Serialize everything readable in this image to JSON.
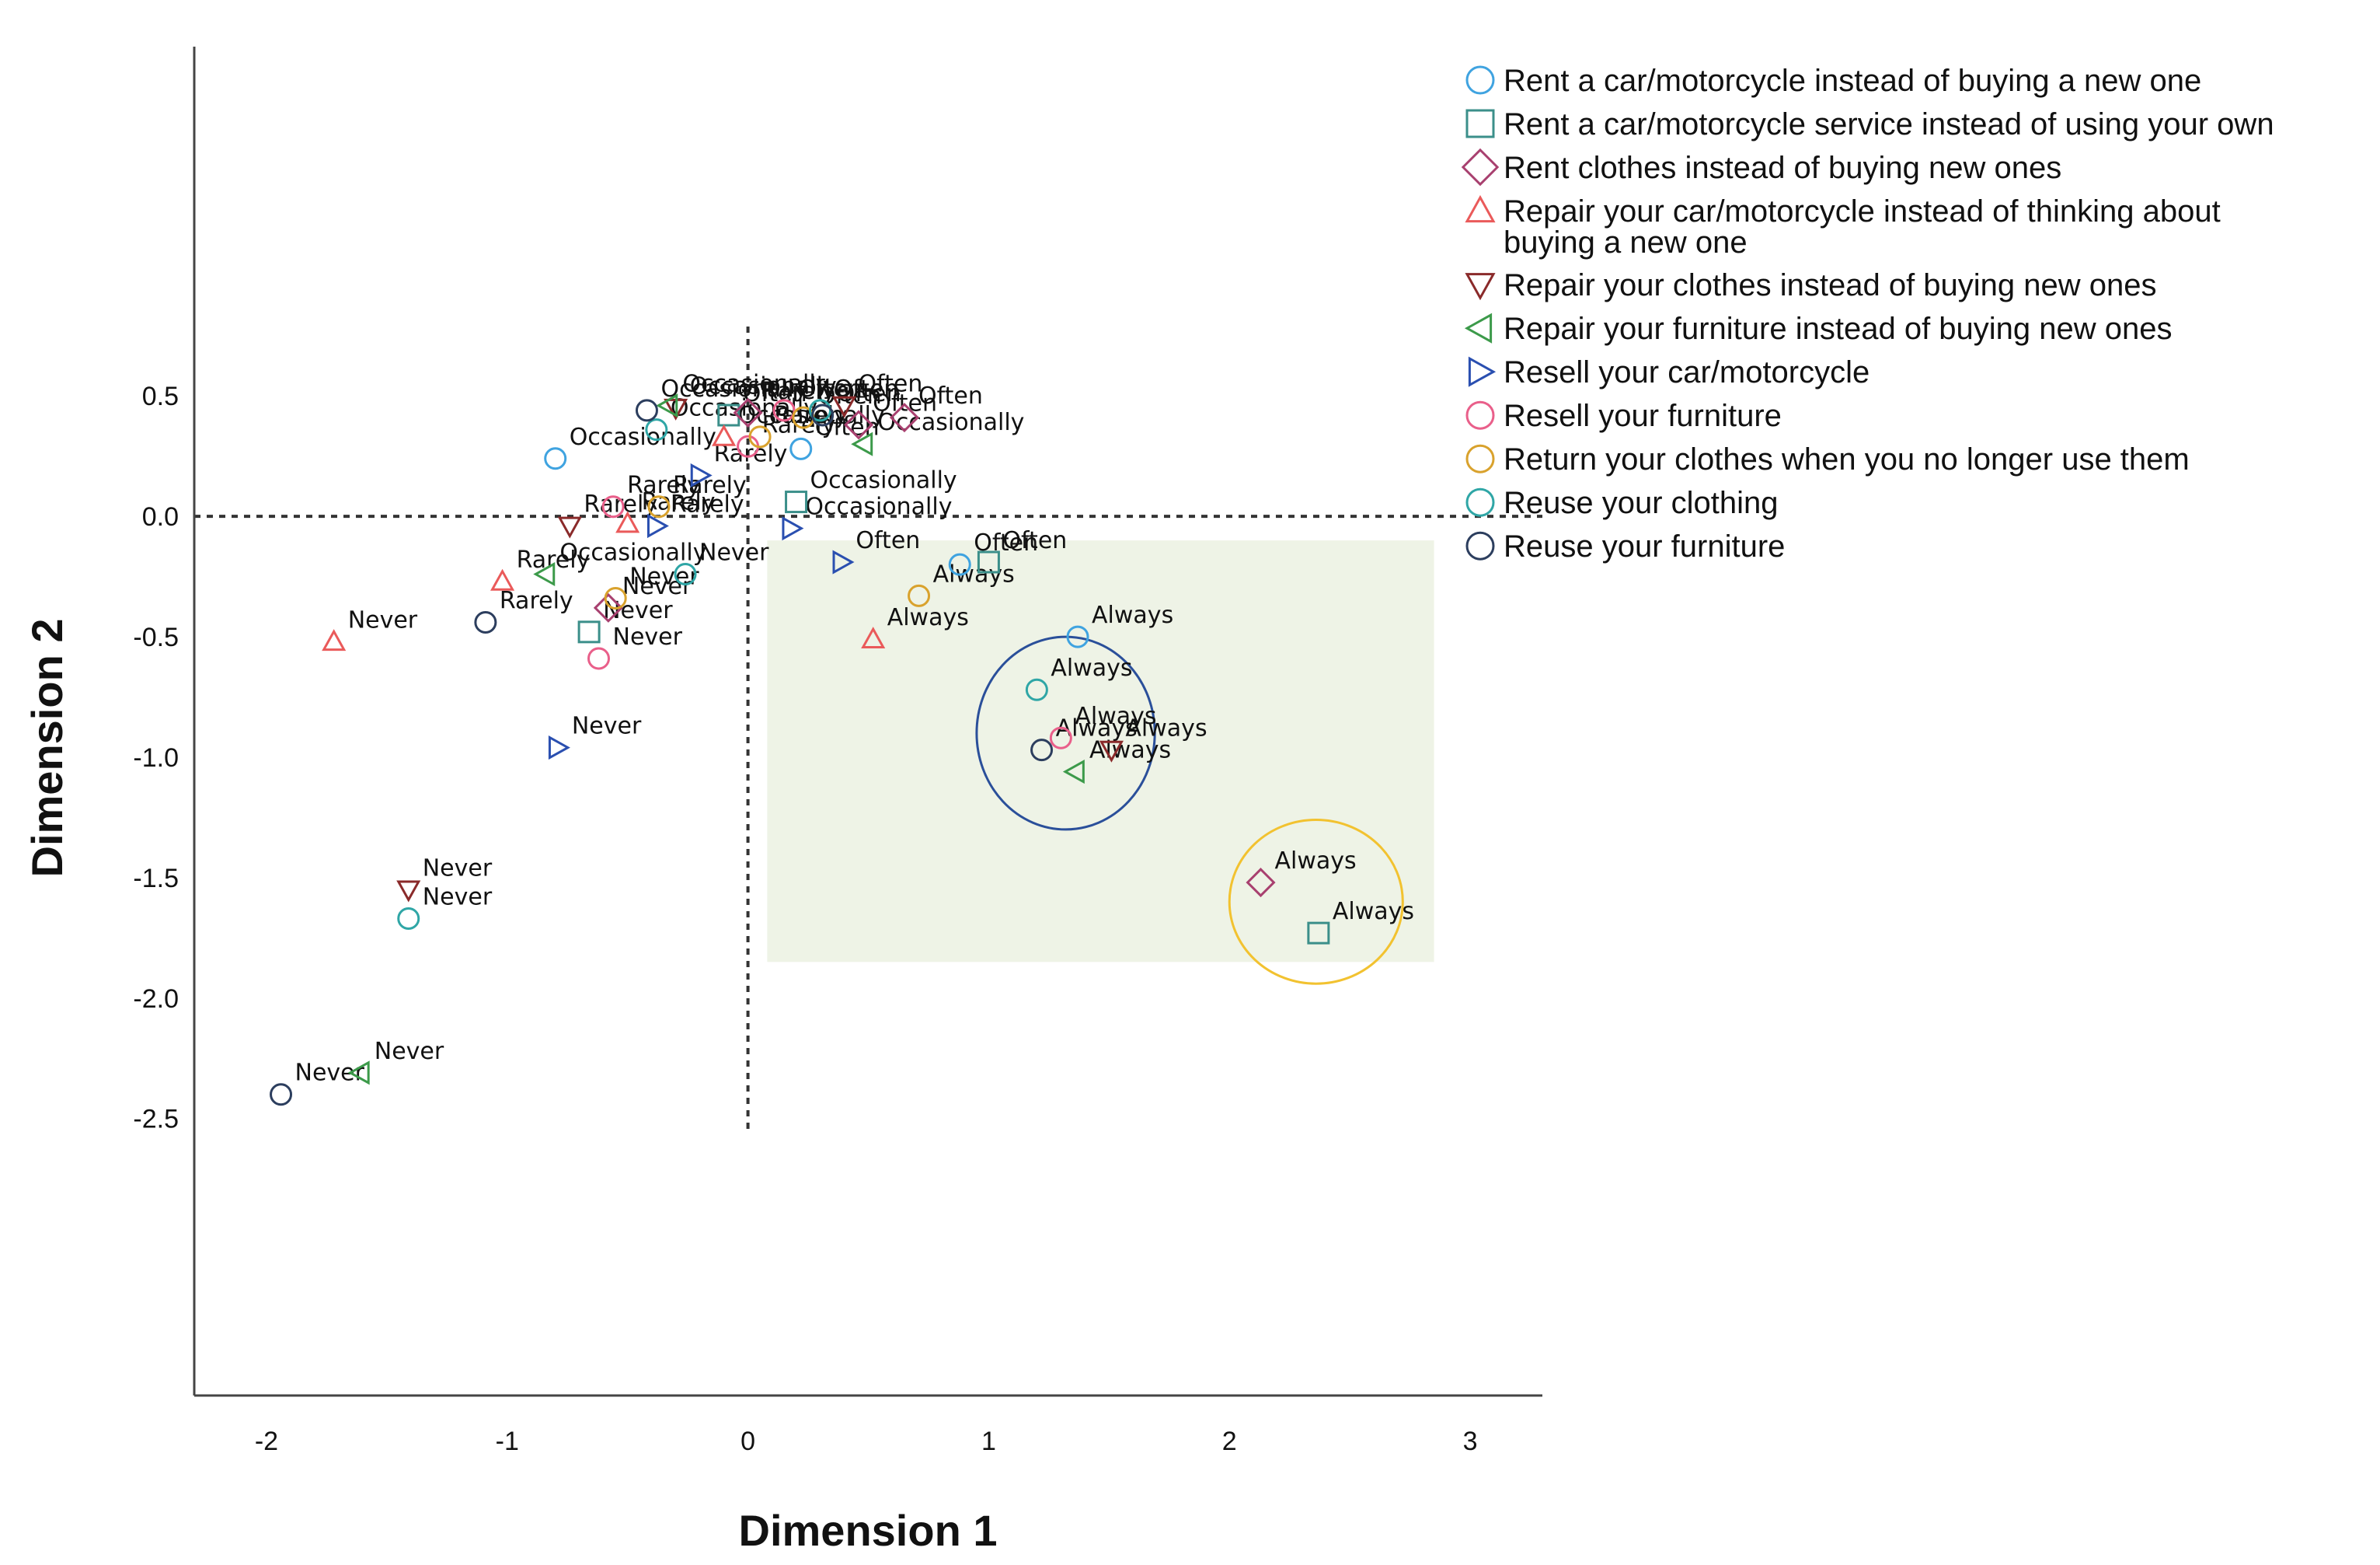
{
  "chart_data": {
    "type": "scatter",
    "title": "",
    "xlabel": "Dimension 1",
    "ylabel": "Dimension 2",
    "xlim": [
      -2.3,
      3.3
    ],
    "ylim": [
      -3.65,
      1.95
    ],
    "xticks": [
      "-2",
      "-1",
      "0",
      "1",
      "2",
      "3"
    ],
    "xtick_values": [
      -2,
      -1,
      0,
      1,
      2,
      3
    ],
    "yticks": [
      "0.5",
      "0.0",
      "-0.5",
      "-1.0",
      "-1.5",
      "-2.0",
      "-2.5"
    ],
    "ytick_values": [
      0.5,
      0,
      -0.5,
      -1,
      -1.5,
      -2,
      -2.5
    ],
    "reference_lines": {
      "x": 0,
      "y": 0
    },
    "legend_position": "right",
    "highlight_regions": [
      {
        "kind": "rect",
        "x_range": [
          0.08,
          2.85
        ],
        "y_range": [
          -1.85,
          -0.1
        ],
        "fill": "#eef3e6"
      },
      {
        "kind": "ellipse",
        "cx": 1.32,
        "cy": -0.9,
        "rx": 0.37,
        "ry": 0.4,
        "stroke": "#2a4f9a"
      },
      {
        "kind": "ellipse",
        "cx": 2.36,
        "cy": -1.6,
        "rx": 0.36,
        "ry": 0.34,
        "stroke": "#f2c230"
      }
    ],
    "series": [
      {
        "name": "Rent a car/motorcycle instead of buying a new one",
        "marker": "circle",
        "color": "#3fa3e0",
        "points": [
          {
            "label": "Occasionally",
            "x": -0.8,
            "y": 0.24
          },
          {
            "label": "Often",
            "x": 0.22,
            "y": 0.28
          },
          {
            "label": "Often",
            "x": 0.88,
            "y": -0.2
          },
          {
            "label": "Always",
            "x": 1.37,
            "y": -0.5
          }
        ]
      },
      {
        "name": "Rent a car/motorcycle service instead of using your own",
        "marker": "square",
        "color": "#3b8f8a",
        "points": [
          {
            "label": "Never",
            "x": -0.66,
            "y": -0.48
          },
          {
            "label": "Often",
            "x": -0.08,
            "y": 0.42
          },
          {
            "label": "Occasionally",
            "x": 0.2,
            "y": 0.06
          },
          {
            "label": "Often",
            "x": 1.0,
            "y": -0.19
          },
          {
            "label": "Always",
            "x": 2.37,
            "y": -1.73
          }
        ]
      },
      {
        "name": "Rent clothes instead of buying new ones",
        "marker": "diamond",
        "color": "#a8406f",
        "points": [
          {
            "label": "Never",
            "x": -0.58,
            "y": -0.38
          },
          {
            "label": "Rarely",
            "x": 0.0,
            "y": 0.43
          },
          {
            "label": "Often",
            "x": 0.46,
            "y": 0.38
          },
          {
            "label": "Often",
            "x": 0.65,
            "y": 0.41
          },
          {
            "label": "Always",
            "x": 2.13,
            "y": -1.52
          }
        ]
      },
      {
        "name": "Repair your car/motorcycle instead of thinking about buying a new one",
        "marker": "triangle-up",
        "color": "#ea5a5a",
        "points": [
          {
            "label": "Never",
            "x": -1.72,
            "y": -0.52
          },
          {
            "label": "Rarely",
            "x": -1.02,
            "y": -0.27
          },
          {
            "label": "Rarely",
            "x": -0.5,
            "y": -0.03
          },
          {
            "label": "Occasionally",
            "x": -0.1,
            "y": 0.33
          },
          {
            "label": "Always",
            "x": 0.52,
            "y": -0.51
          }
        ]
      },
      {
        "name": "Repair your clothes instead of buying new ones",
        "marker": "triangle-down",
        "color": "#8a2a2a",
        "points": [
          {
            "label": "Never",
            "x": -1.41,
            "y": -1.55
          },
          {
            "label": "Rarely",
            "x": -0.74,
            "y": -0.04
          },
          {
            "label": "Occasionally",
            "x": -0.3,
            "y": 0.45
          },
          {
            "label": "Often",
            "x": 0.4,
            "y": 0.46
          },
          {
            "label": "Always",
            "x": 1.51,
            "y": -0.97
          }
        ]
      },
      {
        "name": "Repair your furniture instead of buying new ones",
        "marker": "triangle-left",
        "color": "#3c9a4a",
        "points": [
          {
            "label": "Never",
            "x": -1.61,
            "y": -2.31
          },
          {
            "label": "Occasionally",
            "x": -0.84,
            "y": -0.24
          },
          {
            "label": "Occasionally",
            "x": -0.33,
            "y": 0.46
          },
          {
            "label": "Occasionally",
            "x": 0.48,
            "y": 0.3
          },
          {
            "label": "Always",
            "x": 1.36,
            "y": -1.06
          }
        ]
      },
      {
        "name": "Resell your car/motorcycle",
        "marker": "triangle-right",
        "color": "#2a4fb0",
        "points": [
          {
            "label": "Never",
            "x": -0.79,
            "y": -0.96
          },
          {
            "label": "Rarely",
            "x": -0.38,
            "y": -0.04
          },
          {
            "label": "Rarely",
            "x": -0.2,
            "y": 0.17
          },
          {
            "label": "Occasionally",
            "x": 0.18,
            "y": -0.05
          },
          {
            "label": "Often",
            "x": 0.39,
            "y": -0.19
          }
        ]
      },
      {
        "name": "Resell your furniture",
        "marker": "circle",
        "color": "#e95f8a",
        "points": [
          {
            "label": "Never",
            "x": -0.62,
            "y": -0.59
          },
          {
            "label": "Rarely",
            "x": -0.56,
            "y": 0.04
          },
          {
            "label": "Rarely",
            "x": 0.0,
            "y": 0.29
          },
          {
            "label": "Often",
            "x": 0.15,
            "y": 0.44
          },
          {
            "label": "Always",
            "x": 1.3,
            "y": -0.92
          }
        ]
      },
      {
        "name": "Return your clothes when you no longer use them",
        "marker": "circle",
        "color": "#d9a22d",
        "points": [
          {
            "label": "Never",
            "x": -0.55,
            "y": -0.34
          },
          {
            "label": "Rarely",
            "x": -0.37,
            "y": 0.04
          },
          {
            "label": "Rarely",
            "x": 0.05,
            "y": 0.33
          },
          {
            "label": "Often",
            "x": 0.23,
            "y": 0.41
          },
          {
            "label": "Always",
            "x": 0.71,
            "y": -0.33
          }
        ]
      },
      {
        "name": "Reuse your clothing",
        "marker": "circle",
        "color": "#2fa6a6",
        "points": [
          {
            "label": "Never",
            "x": -1.41,
            "y": -1.67
          },
          {
            "label": "Occasionally",
            "x": -0.38,
            "y": 0.36
          },
          {
            "label": "Never",
            "x": -0.26,
            "y": -0.24
          },
          {
            "label": "Often",
            "x": 0.3,
            "y": 0.44
          },
          {
            "label": "Always",
            "x": 1.2,
            "y": -0.72
          }
        ]
      },
      {
        "name": "Reuse your furniture",
        "marker": "circle",
        "color": "#2c3e5e",
        "points": [
          {
            "label": "Never",
            "x": -1.94,
            "y": -2.4
          },
          {
            "label": "Rarely",
            "x": -1.09,
            "y": -0.44
          },
          {
            "label": "Occasionally",
            "x": -0.42,
            "y": 0.44
          },
          {
            "label": "Often",
            "x": 0.31,
            "y": 0.42
          },
          {
            "label": "Always",
            "x": 1.22,
            "y": -0.97
          }
        ]
      }
    ]
  }
}
